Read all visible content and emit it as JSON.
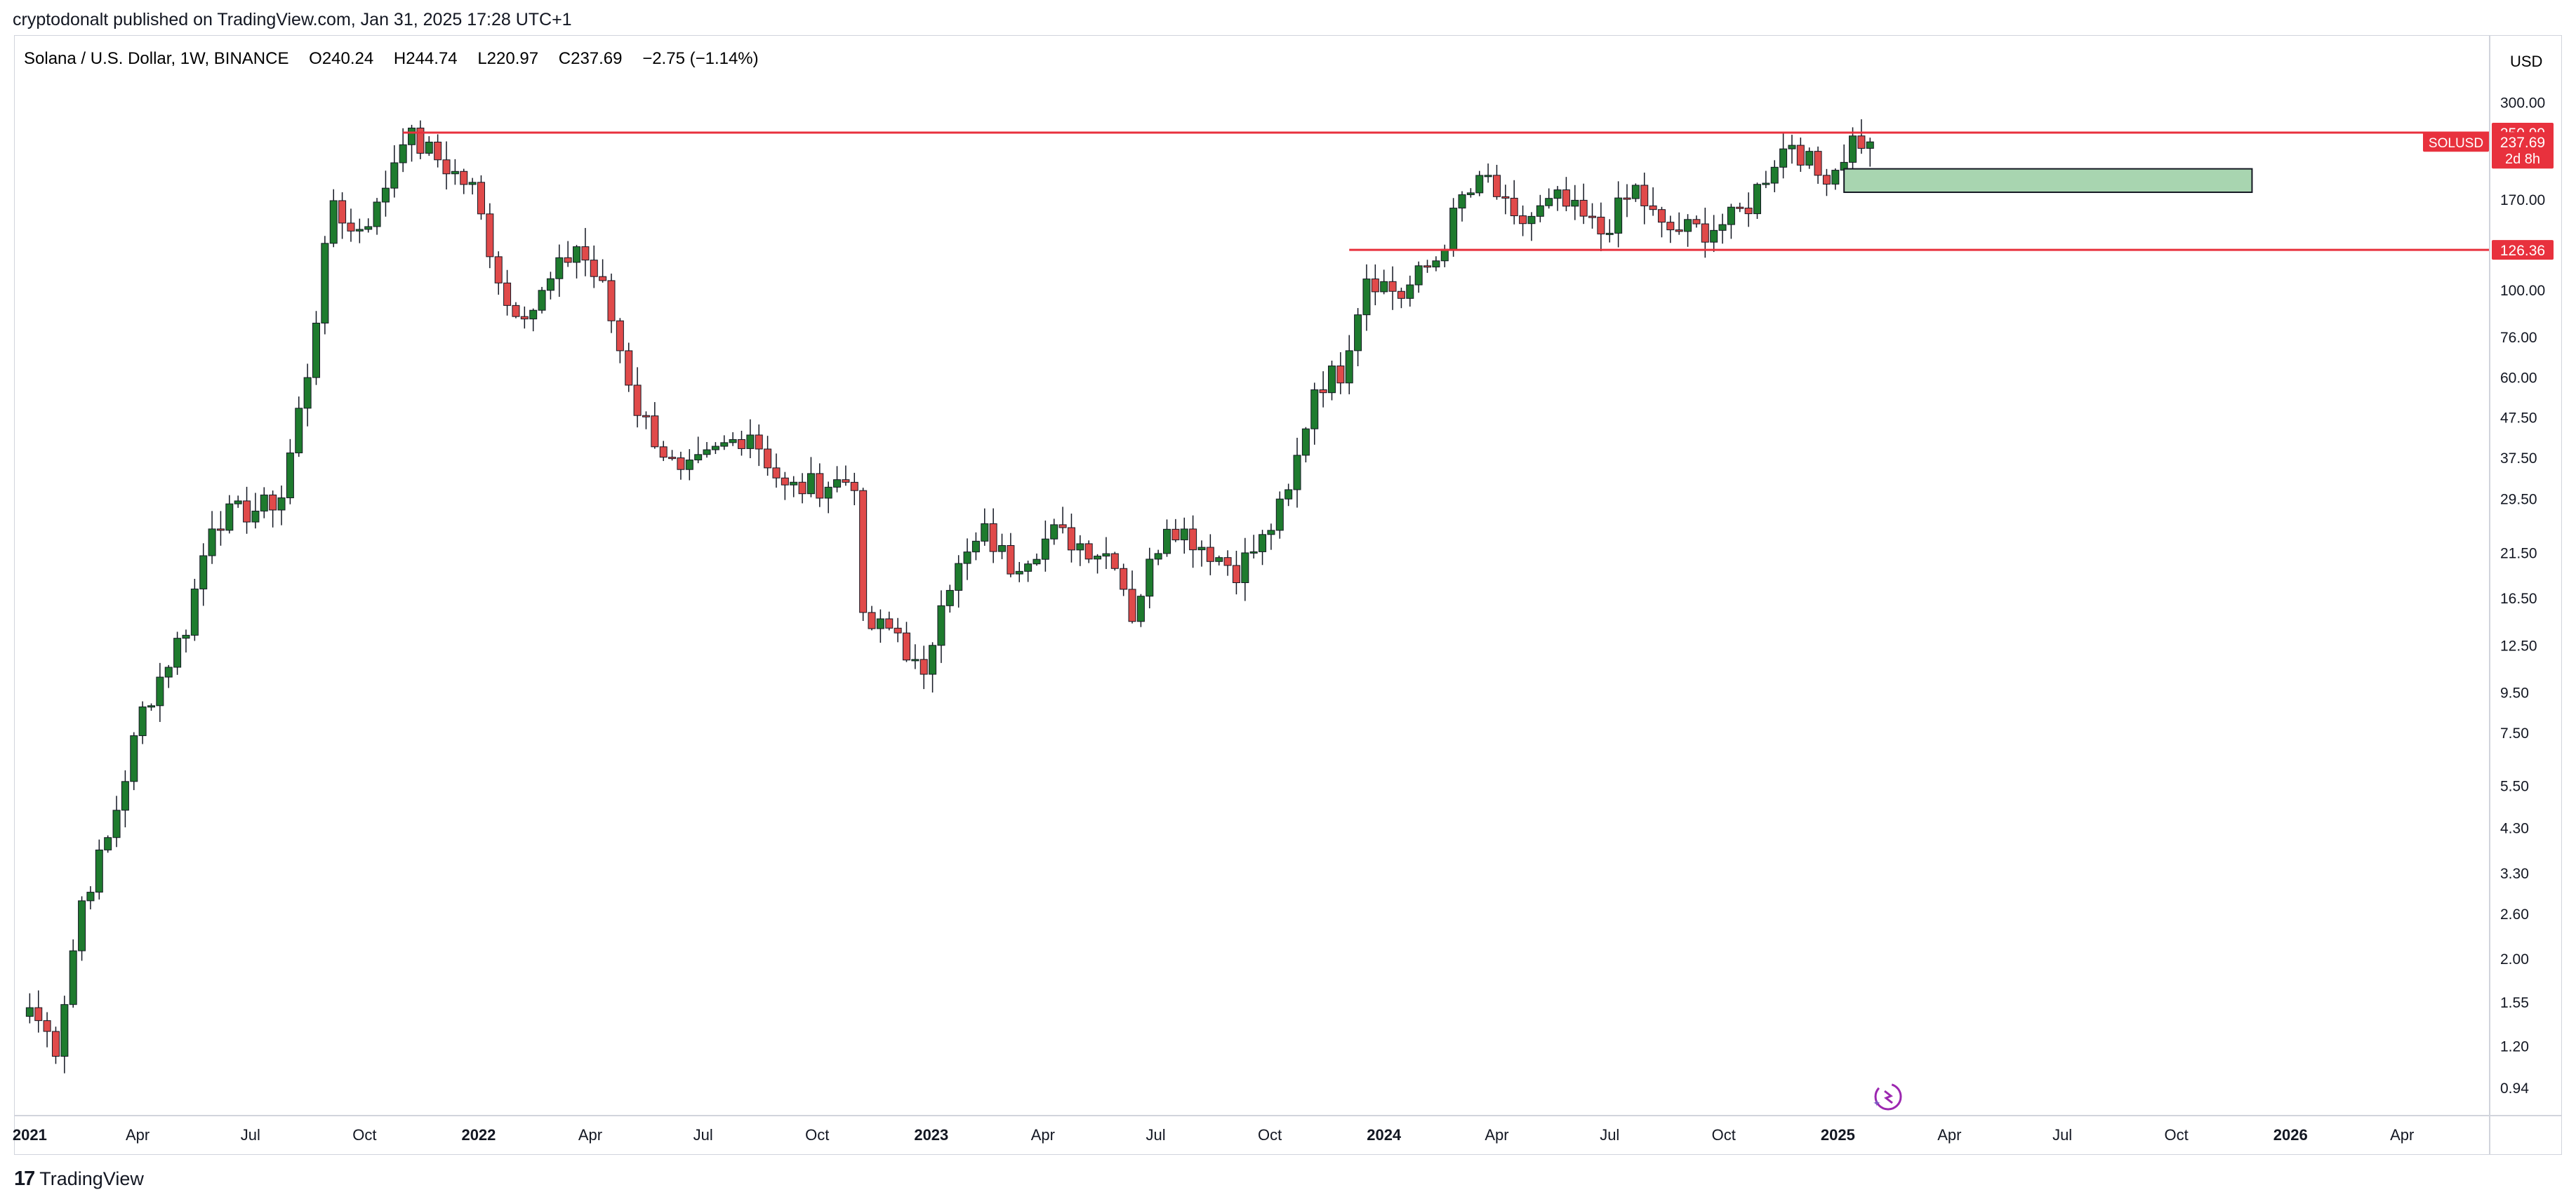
{
  "publish_line": "cryptodonalt published on TradingView.com, Jan 31, 2025 17:28 UTC+1",
  "footer": {
    "logo_mark": "17",
    "logo_text": "TradingView"
  },
  "symbol": {
    "title": "Solana / U.S. Dollar, 1W, BINANCE",
    "open": "O240.24",
    "high": "H244.74",
    "low": "L220.97",
    "close": "C237.69",
    "change": "−2.75 (−1.14%)"
  },
  "colors": {
    "up": "#1e7b2e",
    "down": "#e04a4a",
    "level": "#e8313d",
    "zone_fill": "#a8d5b0",
    "grid": "#d1d4dc"
  },
  "chart_data": {
    "type": "candlestick",
    "title": "Solana / U.S. Dollar, 1W, BINANCE",
    "currency": "USD",
    "scale": "log",
    "ylim": [
      0.75,
      340
    ],
    "xlim": [
      "2020-12-28",
      "2026-06-01"
    ],
    "grid": false,
    "y_ticks": [
      "300.00",
      "170.00",
      "100.00",
      "76.00",
      "60.00",
      "47.50",
      "37.50",
      "29.50",
      "21.50",
      "16.50",
      "12.50",
      "9.50",
      "7.50",
      "5.50",
      "4.30",
      "3.30",
      "2.60",
      "2.00",
      "1.55",
      "1.20",
      "0.94"
    ],
    "x_ticks": [
      {
        "label": "2021",
        "date": "2021-01-04",
        "bold": true
      },
      {
        "label": "Apr",
        "date": "2021-04-01"
      },
      {
        "label": "Jul",
        "date": "2021-07-01"
      },
      {
        "label": "Oct",
        "date": "2021-10-01"
      },
      {
        "label": "2022",
        "date": "2022-01-01",
        "bold": true
      },
      {
        "label": "Apr",
        "date": "2022-04-01"
      },
      {
        "label": "Jul",
        "date": "2022-07-01"
      },
      {
        "label": "Oct",
        "date": "2022-10-01"
      },
      {
        "label": "2023",
        "date": "2023-01-01",
        "bold": true
      },
      {
        "label": "Apr",
        "date": "2023-04-01"
      },
      {
        "label": "Jul",
        "date": "2023-07-01"
      },
      {
        "label": "Oct",
        "date": "2023-10-01"
      },
      {
        "label": "2024",
        "date": "2024-01-01",
        "bold": true
      },
      {
        "label": "Apr",
        "date": "2024-04-01"
      },
      {
        "label": "Jul",
        "date": "2024-07-01"
      },
      {
        "label": "Oct",
        "date": "2024-10-01"
      },
      {
        "label": "2025",
        "date": "2025-01-01",
        "bold": true
      },
      {
        "label": "Apr",
        "date": "2025-04-01"
      },
      {
        "label": "Jul",
        "date": "2025-07-01"
      },
      {
        "label": "Oct",
        "date": "2025-10-01"
      },
      {
        "label": "2026",
        "date": "2026-01-01",
        "bold": true
      },
      {
        "label": "Apr",
        "date": "2026-04-01"
      }
    ],
    "price_labels": [
      {
        "text": "250.99",
        "value": 250.99,
        "kind": "level"
      },
      {
        "text": "237.69",
        "value": 237.69,
        "kind": "last",
        "symbol": "SOLUSD",
        "countdown": "2d 8h"
      },
      {
        "text": "126.36",
        "value": 126.36,
        "kind": "level"
      }
    ],
    "levels": [
      {
        "value": 250.99,
        "from": "2021-11-01"
      },
      {
        "value": 126.36,
        "from": "2023-12-04"
      }
    ],
    "zone": {
      "from": "2025-01-06",
      "to": "2025-12-01",
      "top": 203,
      "bottom": 177
    },
    "anchors": [
      [
        "2021-01-04",
        1.5
      ],
      [
        "2021-01-25",
        1.2
      ],
      [
        "2021-02-15",
        2.8
      ],
      [
        "2021-03-08",
        4.0
      ],
      [
        "2021-04-05",
        8.5
      ],
      [
        "2021-05-10",
        14.0
      ],
      [
        "2021-05-31",
        26.0
      ],
      [
        "2021-07-12",
        28.0
      ],
      [
        "2021-07-26",
        30.0
      ],
      [
        "2021-08-16",
        62.0
      ],
      [
        "2021-09-06",
        170.0
      ],
      [
        "2021-09-20",
        140.0
      ],
      [
        "2021-10-11",
        160.0
      ],
      [
        "2021-11-01",
        250.0
      ],
      [
        "2021-11-29",
        215.0
      ],
      [
        "2021-12-27",
        180.0
      ],
      [
        "2022-01-24",
        92.0
      ],
      [
        "2022-02-14",
        90.0
      ],
      [
        "2022-03-21",
        130.0
      ],
      [
        "2022-04-11",
        100.0
      ],
      [
        "2022-05-09",
        50.0
      ],
      [
        "2022-06-13",
        33.0
      ],
      [
        "2022-07-18",
        40.0
      ],
      [
        "2022-08-08",
        44.0
      ],
      [
        "2022-09-05",
        31.0
      ],
      [
        "2022-10-31",
        33.0
      ],
      [
        "2022-11-07",
        14.0
      ],
      [
        "2022-12-05",
        13.5
      ],
      [
        "2022-12-26",
        9.9
      ],
      [
        "2023-01-09",
        17.0
      ],
      [
        "2023-02-13",
        24.0
      ],
      [
        "2023-03-06",
        20.0
      ],
      [
        "2023-04-10",
        24.0
      ],
      [
        "2023-05-29",
        21.0
      ],
      [
        "2023-06-12",
        15.0
      ],
      [
        "2023-07-10",
        26.0
      ],
      [
        "2023-09-04",
        19.5
      ],
      [
        "2023-09-25",
        23.0
      ],
      [
        "2023-10-16",
        30.0
      ],
      [
        "2023-11-06",
        57.0
      ],
      [
        "2023-11-27",
        62.0
      ],
      [
        "2023-12-18",
        110.0
      ],
      [
        "2024-01-15",
        97.0
      ],
      [
        "2024-02-12",
        120.0
      ],
      [
        "2024-03-04",
        170.0
      ],
      [
        "2024-03-25",
        190.0
      ],
      [
        "2024-04-15",
        145.0
      ],
      [
        "2024-05-20",
        168.0
      ],
      [
        "2024-06-24",
        140.0
      ],
      [
        "2024-07-22",
        180.0
      ],
      [
        "2024-08-12",
        142.0
      ],
      [
        "2024-09-16",
        142.0
      ],
      [
        "2024-10-07",
        150.0
      ],
      [
        "2024-10-21",
        165.0
      ],
      [
        "2024-11-11",
        215.0
      ],
      [
        "2024-11-25",
        240.0
      ],
      [
        "2024-12-16",
        195.0
      ],
      [
        "2024-12-30",
        205.0
      ],
      [
        "2025-01-13",
        240.0
      ],
      [
        "2025-01-27",
        237.69
      ]
    ]
  }
}
